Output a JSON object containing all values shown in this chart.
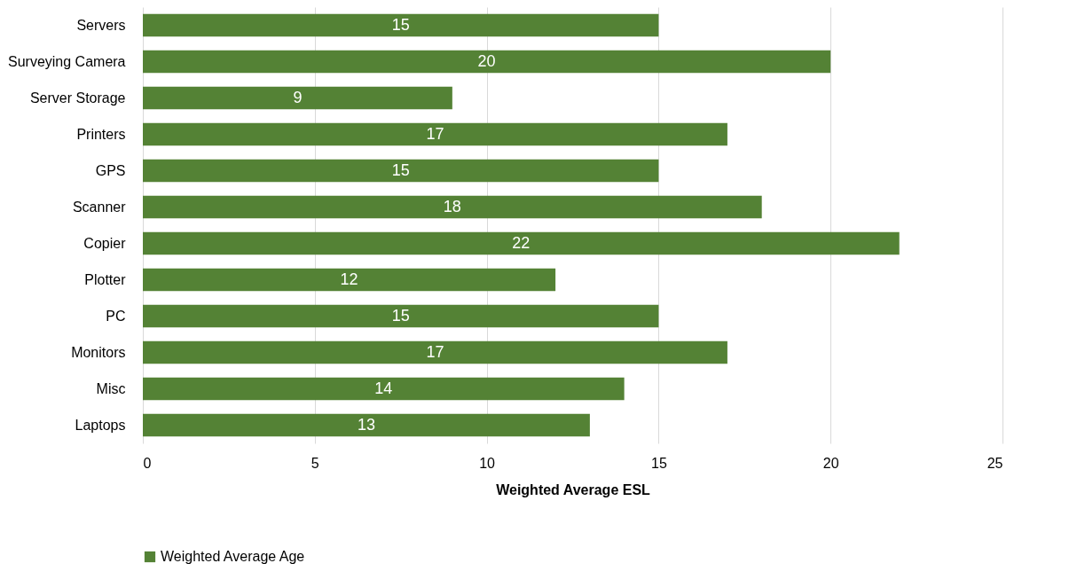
{
  "chart_data": {
    "type": "bar",
    "orientation": "horizontal",
    "xlabel": "Weighted Average ESL",
    "categories": [
      "Servers",
      "Surveying Camera",
      "Server Storage",
      "Printers",
      "GPS",
      "Scanner",
      "Copier",
      "Plotter",
      "PC",
      "Monitors",
      "Misc",
      "Laptops"
    ],
    "series": [
      {
        "name": "Weighted Average Age",
        "color": "#548235",
        "values": [
          15,
          20,
          9,
          17,
          15,
          18,
          22,
          12,
          15,
          17,
          14,
          13
        ]
      }
    ],
    "xlim": [
      0,
      25
    ],
    "xticks": [
      0,
      5,
      10,
      15,
      20,
      25
    ],
    "grid": "x",
    "legend": "bottom",
    "data_labels": true
  }
}
